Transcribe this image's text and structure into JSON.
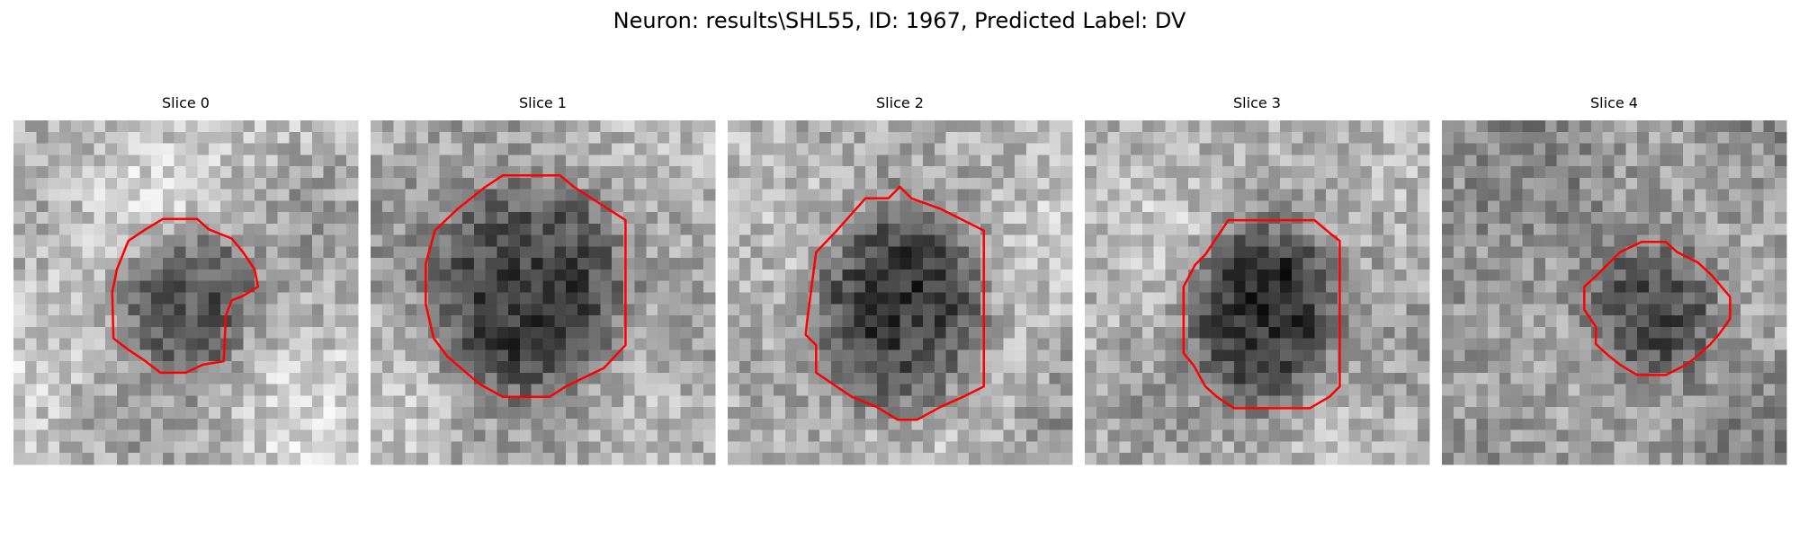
{
  "title": "Neuron: results\\SHL55, ID: 1967, Predicted Label: DV",
  "panels": [
    {
      "title": "Slice 0"
    },
    {
      "title": "Slice 1"
    },
    {
      "title": "Slice 2"
    },
    {
      "title": "Slice 3"
    },
    {
      "title": "Slice 4"
    }
  ]
}
